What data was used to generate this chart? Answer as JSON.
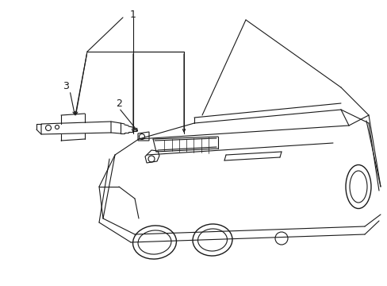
{
  "background_color": "#ffffff",
  "line_color": "#1a1a1a",
  "line_width": 0.8,
  "label_1": "1",
  "label_2": "2",
  "label_3": "3",
  "figsize": [
    4.89,
    3.6
  ],
  "dpi": 100
}
